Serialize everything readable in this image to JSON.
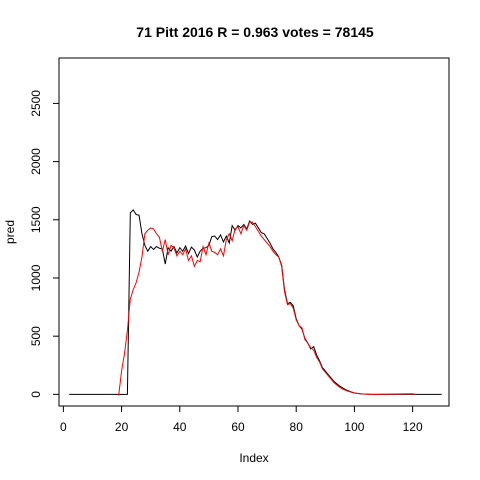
{
  "chart_data": {
    "type": "line",
    "title": "71 Pitt 2016 R = 0.963 votes = 78145",
    "xlabel": "Index",
    "ylabel": "pred",
    "xlim": [
      -1.5,
      132.5
    ],
    "ylim": [
      -100,
      2890
    ],
    "x_ticks": [
      0,
      20,
      40,
      60,
      80,
      100,
      120
    ],
    "y_ticks": [
      0,
      500,
      1000,
      1500,
      2000,
      2500
    ],
    "grid": false,
    "series": [
      {
        "color": "#000000",
        "points": [
          [
            2,
            0
          ],
          [
            22,
            0
          ],
          [
            23,
            1560
          ],
          [
            24,
            1585
          ],
          [
            25,
            1545
          ],
          [
            26,
            1540
          ],
          [
            27,
            1380
          ],
          [
            28,
            1280
          ],
          [
            29,
            1230
          ],
          [
            30,
            1270
          ],
          [
            31,
            1245
          ],
          [
            32,
            1270
          ],
          [
            33,
            1255
          ],
          [
            34,
            1250
          ],
          [
            35,
            1120
          ],
          [
            36,
            1260
          ],
          [
            37,
            1230
          ],
          [
            38,
            1270
          ],
          [
            39,
            1215
          ],
          [
            40,
            1260
          ],
          [
            41,
            1230
          ],
          [
            42,
            1275
          ],
          [
            43,
            1210
          ],
          [
            44,
            1265
          ],
          [
            45,
            1240
          ],
          [
            46,
            1180
          ],
          [
            47,
            1230
          ],
          [
            48,
            1255
          ],
          [
            49,
            1260
          ],
          [
            50,
            1280
          ],
          [
            51,
            1355
          ],
          [
            52,
            1360
          ],
          [
            53,
            1330
          ],
          [
            54,
            1370
          ],
          [
            55,
            1310
          ],
          [
            56,
            1360
          ],
          [
            57,
            1300
          ],
          [
            58,
            1450
          ],
          [
            59,
            1410
          ],
          [
            60,
            1450
          ],
          [
            61,
            1430
          ],
          [
            62,
            1460
          ],
          [
            63,
            1420
          ],
          [
            64,
            1490
          ],
          [
            65,
            1460
          ],
          [
            66,
            1470
          ],
          [
            67,
            1430
          ],
          [
            68,
            1390
          ],
          [
            69,
            1380
          ],
          [
            70,
            1340
          ],
          [
            71,
            1300
          ],
          [
            72,
            1250
          ],
          [
            73,
            1220
          ],
          [
            74,
            1180
          ],
          [
            75,
            1110
          ],
          [
            76,
            900
          ],
          [
            77,
            780
          ],
          [
            78,
            790
          ],
          [
            79,
            760
          ],
          [
            80,
            650
          ],
          [
            81,
            590
          ],
          [
            82,
            560
          ],
          [
            83,
            480
          ],
          [
            84,
            440
          ],
          [
            85,
            390
          ],
          [
            86,
            410
          ],
          [
            87,
            340
          ],
          [
            88,
            290
          ],
          [
            89,
            230
          ],
          [
            90,
            200
          ],
          [
            91,
            170
          ],
          [
            92,
            140
          ],
          [
            93,
            110
          ],
          [
            94,
            90
          ],
          [
            95,
            70
          ],
          [
            96,
            55
          ],
          [
            97,
            40
          ],
          [
            98,
            30
          ],
          [
            99,
            20
          ],
          [
            100,
            12
          ],
          [
            101,
            8
          ],
          [
            102,
            5
          ],
          [
            103,
            3
          ],
          [
            104,
            2
          ],
          [
            105,
            1
          ],
          [
            106,
            0
          ],
          [
            130,
            0
          ]
        ]
      },
      {
        "color": "#ff0000",
        "points": [
          [
            19,
            -10
          ],
          [
            20,
            200
          ],
          [
            21,
            350
          ],
          [
            22,
            550
          ],
          [
            23,
            820
          ],
          [
            24,
            900
          ],
          [
            25,
            960
          ],
          [
            26,
            1050
          ],
          [
            27,
            1180
          ],
          [
            28,
            1380
          ],
          [
            29,
            1410
          ],
          [
            30,
            1430
          ],
          [
            31,
            1420
          ],
          [
            32,
            1380
          ],
          [
            33,
            1350
          ],
          [
            34,
            1230
          ],
          [
            35,
            1330
          ],
          [
            36,
            1200
          ],
          [
            37,
            1280
          ],
          [
            38,
            1260
          ],
          [
            39,
            1190
          ],
          [
            40,
            1230
          ],
          [
            41,
            1200
          ],
          [
            42,
            1250
          ],
          [
            43,
            1150
          ],
          [
            44,
            1190
          ],
          [
            45,
            1100
          ],
          [
            46,
            1150
          ],
          [
            47,
            1140
          ],
          [
            48,
            1270
          ],
          [
            49,
            1200
          ],
          [
            50,
            1300
          ],
          [
            51,
            1230
          ],
          [
            52,
            1220
          ],
          [
            53,
            1200
          ],
          [
            54,
            1250
          ],
          [
            55,
            1190
          ],
          [
            56,
            1330
          ],
          [
            57,
            1380
          ],
          [
            58,
            1320
          ],
          [
            59,
            1420
          ],
          [
            60,
            1440
          ],
          [
            61,
            1380
          ],
          [
            62,
            1450
          ],
          [
            63,
            1410
          ],
          [
            64,
            1480
          ],
          [
            65,
            1480
          ],
          [
            66,
            1440
          ],
          [
            67,
            1400
          ],
          [
            68,
            1360
          ],
          [
            69,
            1330
          ],
          [
            70,
            1300
          ],
          [
            71,
            1270
          ],
          [
            72,
            1230
          ],
          [
            73,
            1200
          ],
          [
            74,
            1180
          ],
          [
            75,
            1100
          ],
          [
            76,
            880
          ],
          [
            77,
            770
          ],
          [
            78,
            780
          ],
          [
            79,
            740
          ],
          [
            80,
            640
          ],
          [
            81,
            590
          ],
          [
            82,
            570
          ],
          [
            83,
            470
          ],
          [
            84,
            440
          ],
          [
            85,
            400
          ],
          [
            86,
            380
          ],
          [
            87,
            320
          ],
          [
            88,
            280
          ],
          [
            89,
            220
          ],
          [
            90,
            190
          ],
          [
            91,
            160
          ],
          [
            92,
            130
          ],
          [
            93,
            100
          ],
          [
            94,
            80
          ],
          [
            95,
            60
          ],
          [
            96,
            45
          ],
          [
            97,
            35
          ],
          [
            98,
            25
          ],
          [
            99,
            18
          ],
          [
            100,
            12
          ],
          [
            101,
            8
          ],
          [
            102,
            5
          ],
          [
            103,
            3
          ],
          [
            104,
            2
          ],
          [
            105,
            1
          ],
          [
            106,
            0
          ],
          [
            120,
            5
          ],
          [
            121,
            0
          ]
        ]
      }
    ]
  }
}
